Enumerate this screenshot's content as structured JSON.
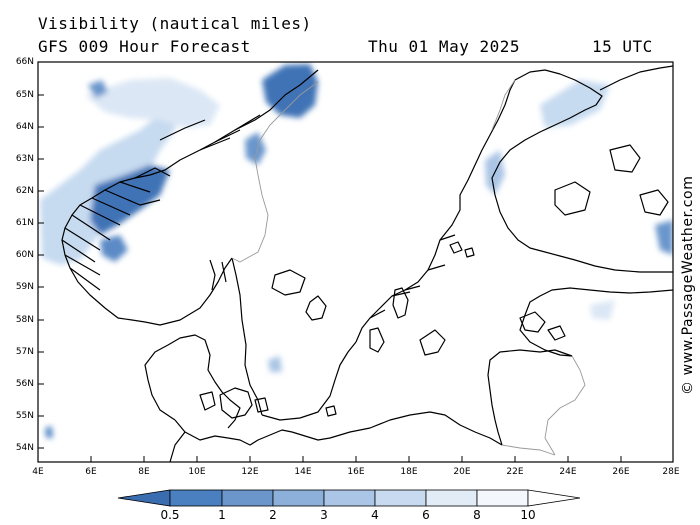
{
  "header": {
    "title_line1": "Visibility (nautical miles)",
    "forecast": "GFS 009 Hour Forecast",
    "date": "Thu 01 May 2025",
    "time": "15 UTC"
  },
  "credit": "© www.PassageWeather.com",
  "axes": {
    "lat_labels": [
      "66N",
      "65N",
      "64N",
      "63N",
      "62N",
      "61N",
      "60N",
      "59N",
      "58N",
      "57N",
      "56N",
      "55N",
      "54N"
    ],
    "lon_labels": [
      "4E",
      "6E",
      "8E",
      "10E",
      "12E",
      "14E",
      "16E",
      "18E",
      "20E",
      "22E",
      "24E",
      "26E",
      "28E"
    ]
  },
  "colorbar": {
    "labels": [
      "0.5",
      "1",
      "2",
      "3",
      "4",
      "6",
      "8",
      "10"
    ],
    "colors": [
      "#3a6db0",
      "#4a7fc0",
      "#6a96cc",
      "#8cb0da",
      "#aac5e5",
      "#c8daf0",
      "#e2ecf7",
      "#f4f8fc"
    ]
  },
  "colors": {
    "land_outline": "#000000",
    "border": "#999999",
    "fog_dark": "#3f73b6",
    "fog_light": "#c6daf0"
  }
}
